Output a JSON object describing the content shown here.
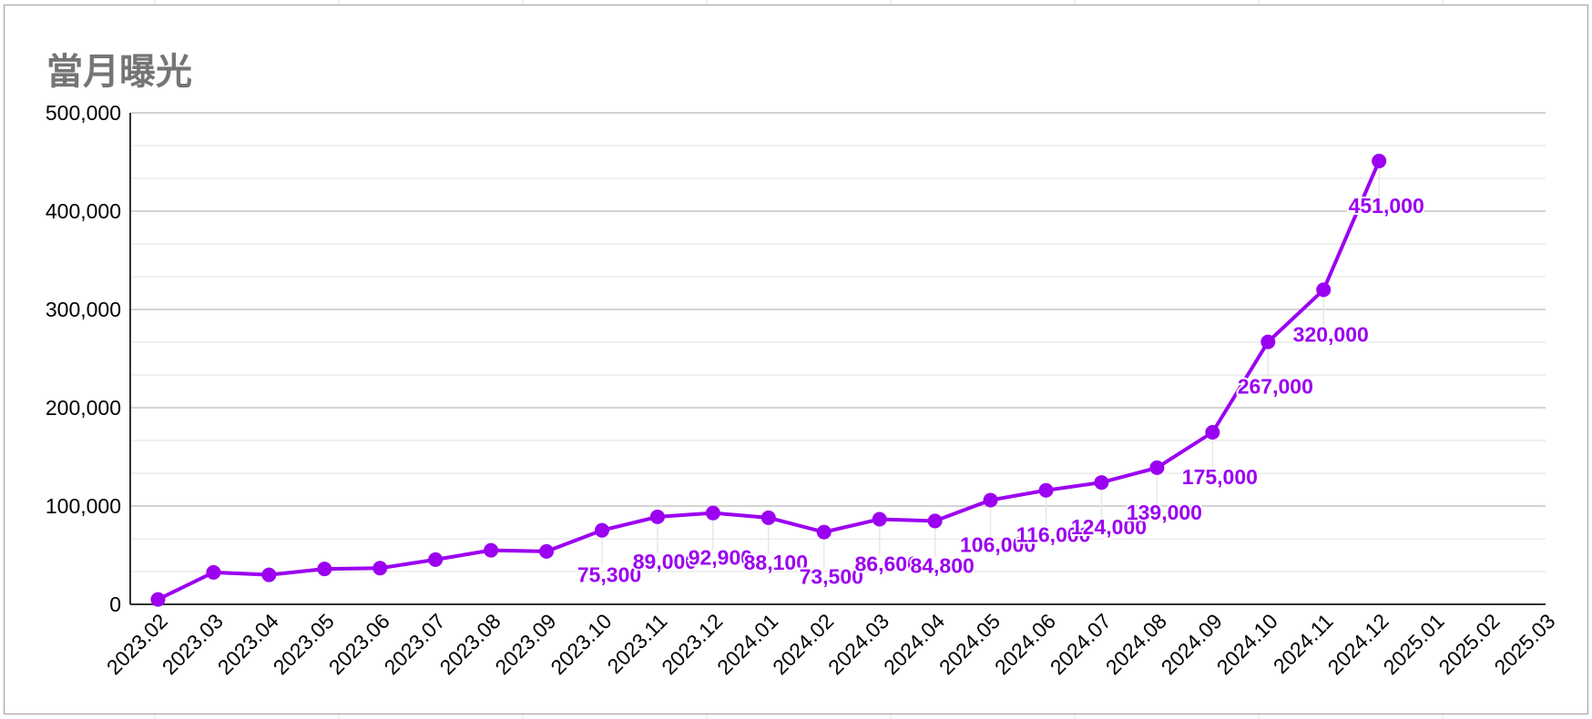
{
  "chart_data": {
    "type": "line",
    "title": "當月曝光",
    "xlabel": "",
    "ylabel": "",
    "ylim": [
      0,
      500000
    ],
    "yticks": [
      "0",
      "100,000",
      "200,000",
      "300,000",
      "400,000",
      "500,000"
    ],
    "grid": true,
    "legend": "none",
    "x": [
      "2023.02",
      "2023.03",
      "2023.04",
      "2023.05",
      "2023.06",
      "2023.07",
      "2023.08",
      "2023.09",
      "2023.10",
      "2023.11",
      "2023.12",
      "2024.01",
      "2024.02",
      "2024.03",
      "2024.04",
      "2024.05",
      "2024.06",
      "2024.07",
      "2024.08",
      "2024.09",
      "2024.10",
      "2024.11",
      "2024.12",
      "2025.01",
      "2025.02",
      "2025.03"
    ],
    "series": [
      {
        "color": "#9b00f0",
        "values": [
          5000,
          32500,
          30000,
          36000,
          36800,
          45500,
          55000,
          53800,
          75300,
          89000,
          92900,
          88100,
          73500,
          86600,
          84800,
          106000,
          116000,
          124000,
          139000,
          175000,
          267000,
          320000,
          451000,
          null,
          null,
          null
        ],
        "labels": [
          null,
          null,
          null,
          null,
          null,
          null,
          null,
          null,
          "75,300",
          "89,000",
          "92,900",
          "88,100",
          "73,500",
          "86,600",
          "84,800",
          "106,000",
          "116,000",
          "124,000",
          "139,000",
          "175,000",
          "267,000",
          "320,000",
          "451,000",
          null,
          null,
          null
        ]
      }
    ]
  }
}
